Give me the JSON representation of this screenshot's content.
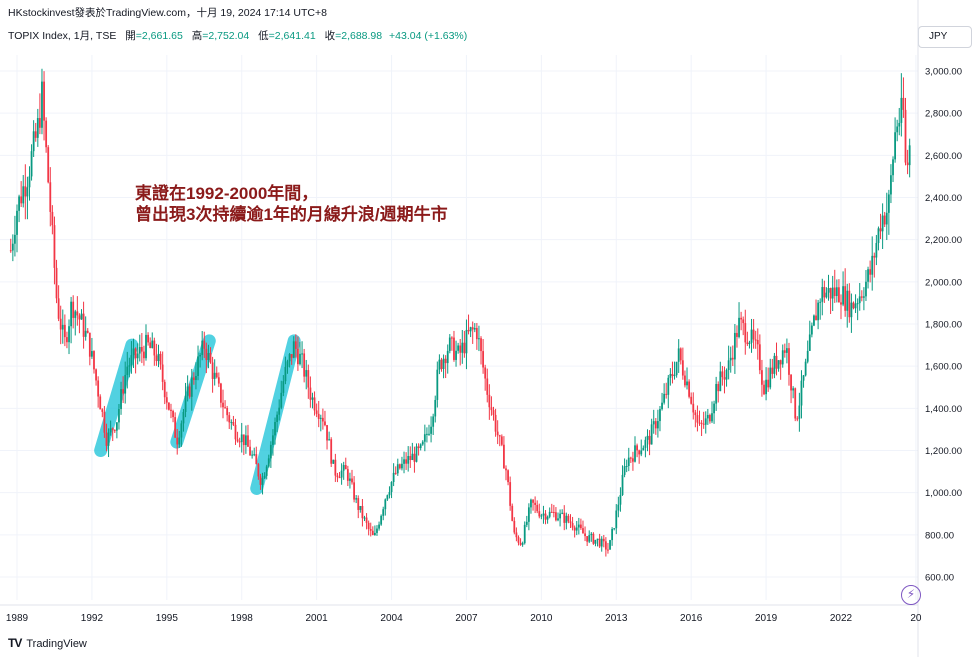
{
  "header": {
    "watermark_line": "HKstockinvest發表於TradingView.com，十月 19, 2024 17:14 UTC+8",
    "symbol": "TOPIX Index, 1月, TSE",
    "open_label": "開",
    "open_value": "=2,661.65",
    "high_label": "高",
    "high_value": "=2,752.04",
    "low_label": "低",
    "low_value": "=2,641.41",
    "close_label": "收",
    "close_value": "=2,688.98",
    "change": "+43.04 (+1.63%)"
  },
  "currency_button": "JPY",
  "annotation": {
    "line1": "東證在1992-2000年間，",
    "line2": "曾出現3次持續逾1年的月線升浪/週期牛市"
  },
  "footer": {
    "logo": "TV",
    "brand": "TradingView"
  },
  "icons": {
    "flash": "lightning-icon"
  },
  "colors": {
    "up": "#089981",
    "down": "#f23645",
    "highlight": "#26c6da",
    "annotation": "#8b1a1a"
  },
  "chart_data": {
    "type": "candlestick",
    "title": "TOPIX Index, 1月, TSE",
    "y_ticks": [
      "3,000.00",
      "2,800.00",
      "2,600.00",
      "2,400.00",
      "2,200.00",
      "2,000.00",
      "1,800.00",
      "1,600.00",
      "1,400.00",
      "1,200.00",
      "1,000.00",
      "800.00",
      "600.00"
    ],
    "x_ticks": [
      "1989",
      "1992",
      "1995",
      "1998",
      "2001",
      "2004",
      "2007",
      "2010",
      "2013",
      "2016",
      "2019",
      "2022",
      "20"
    ],
    "ylim": [
      520,
      3070
    ],
    "xlim": [
      1988.7,
      2025.1
    ],
    "grid": true,
    "series": [
      {
        "keypoints": [
          [
            1988.75,
            2150
          ],
          [
            1989.0,
            2350
          ],
          [
            1989.4,
            2500
          ],
          [
            1989.8,
            2700
          ],
          [
            1990.0,
            2880
          ],
          [
            1990.3,
            2400
          ],
          [
            1990.6,
            1900
          ],
          [
            1990.9,
            1700
          ],
          [
            1991.2,
            1900
          ],
          [
            1991.6,
            1800
          ],
          [
            1991.9,
            1700
          ],
          [
            1992.3,
            1450
          ],
          [
            1992.6,
            1250
          ],
          [
            1993.0,
            1350
          ],
          [
            1993.4,
            1600
          ],
          [
            1993.8,
            1650
          ],
          [
            1994.2,
            1700
          ],
          [
            1994.6,
            1650
          ],
          [
            1995.0,
            1450
          ],
          [
            1995.4,
            1250
          ],
          [
            1995.8,
            1450
          ],
          [
            1996.2,
            1600
          ],
          [
            1996.5,
            1700
          ],
          [
            1996.9,
            1550
          ],
          [
            1997.3,
            1400
          ],
          [
            1997.7,
            1300
          ],
          [
            1998.1,
            1250
          ],
          [
            1998.5,
            1150
          ],
          [
            1998.8,
            1050
          ],
          [
            1999.3,
            1300
          ],
          [
            1999.7,
            1550
          ],
          [
            2000.1,
            1700
          ],
          [
            2000.4,
            1620
          ],
          [
            2000.8,
            1450
          ],
          [
            2001.3,
            1350
          ],
          [
            2001.7,
            1100
          ],
          [
            2002.2,
            1100
          ],
          [
            2002.6,
            950
          ],
          [
            2003.1,
            820
          ],
          [
            2003.3,
            780
          ],
          [
            2003.8,
            1000
          ],
          [
            2004.2,
            1100
          ],
          [
            2004.6,
            1150
          ],
          [
            2005.2,
            1200
          ],
          [
            2005.6,
            1350
          ],
          [
            2005.9,
            1600
          ],
          [
            2006.3,
            1700
          ],
          [
            2006.7,
            1650
          ],
          [
            2007.1,
            1750
          ],
          [
            2007.4,
            1780
          ],
          [
            2007.8,
            1500
          ],
          [
            2008.2,
            1300
          ],
          [
            2008.6,
            1100
          ],
          [
            2008.9,
            800
          ],
          [
            2009.2,
            760
          ],
          [
            2009.6,
            950
          ],
          [
            2010.0,
            900
          ],
          [
            2010.5,
            900
          ],
          [
            2010.9,
            880
          ],
          [
            2011.3,
            850
          ],
          [
            2011.8,
            790
          ],
          [
            2012.3,
            770
          ],
          [
            2012.7,
            730
          ],
          [
            2013.0,
            900
          ],
          [
            2013.4,
            1150
          ],
          [
            2013.8,
            1200
          ],
          [
            2014.3,
            1250
          ],
          [
            2014.8,
            1400
          ],
          [
            2015.2,
            1550
          ],
          [
            2015.5,
            1650
          ],
          [
            2015.9,
            1500
          ],
          [
            2016.3,
            1300
          ],
          [
            2016.7,
            1350
          ],
          [
            2017.0,
            1500
          ],
          [
            2017.5,
            1600
          ],
          [
            2017.9,
            1800
          ],
          [
            2018.3,
            1750
          ],
          [
            2018.7,
            1650
          ],
          [
            2018.9,
            1500
          ],
          [
            2019.3,
            1600
          ],
          [
            2019.8,
            1700
          ],
          [
            2020.2,
            1350
          ],
          [
            2020.6,
            1600
          ],
          [
            2020.9,
            1800
          ],
          [
            2021.2,
            1950
          ],
          [
            2021.6,
            1950
          ],
          [
            2022.0,
            1950
          ],
          [
            2022.4,
            1880
          ],
          [
            2022.8,
            1950
          ],
          [
            2023.2,
            2050
          ],
          [
            2023.6,
            2300
          ],
          [
            2023.9,
            2350
          ],
          [
            2024.2,
            2750
          ],
          [
            2024.5,
            2800
          ],
          [
            2024.6,
            2500
          ],
          [
            2024.8,
            2690
          ]
        ]
      }
    ]
  }
}
